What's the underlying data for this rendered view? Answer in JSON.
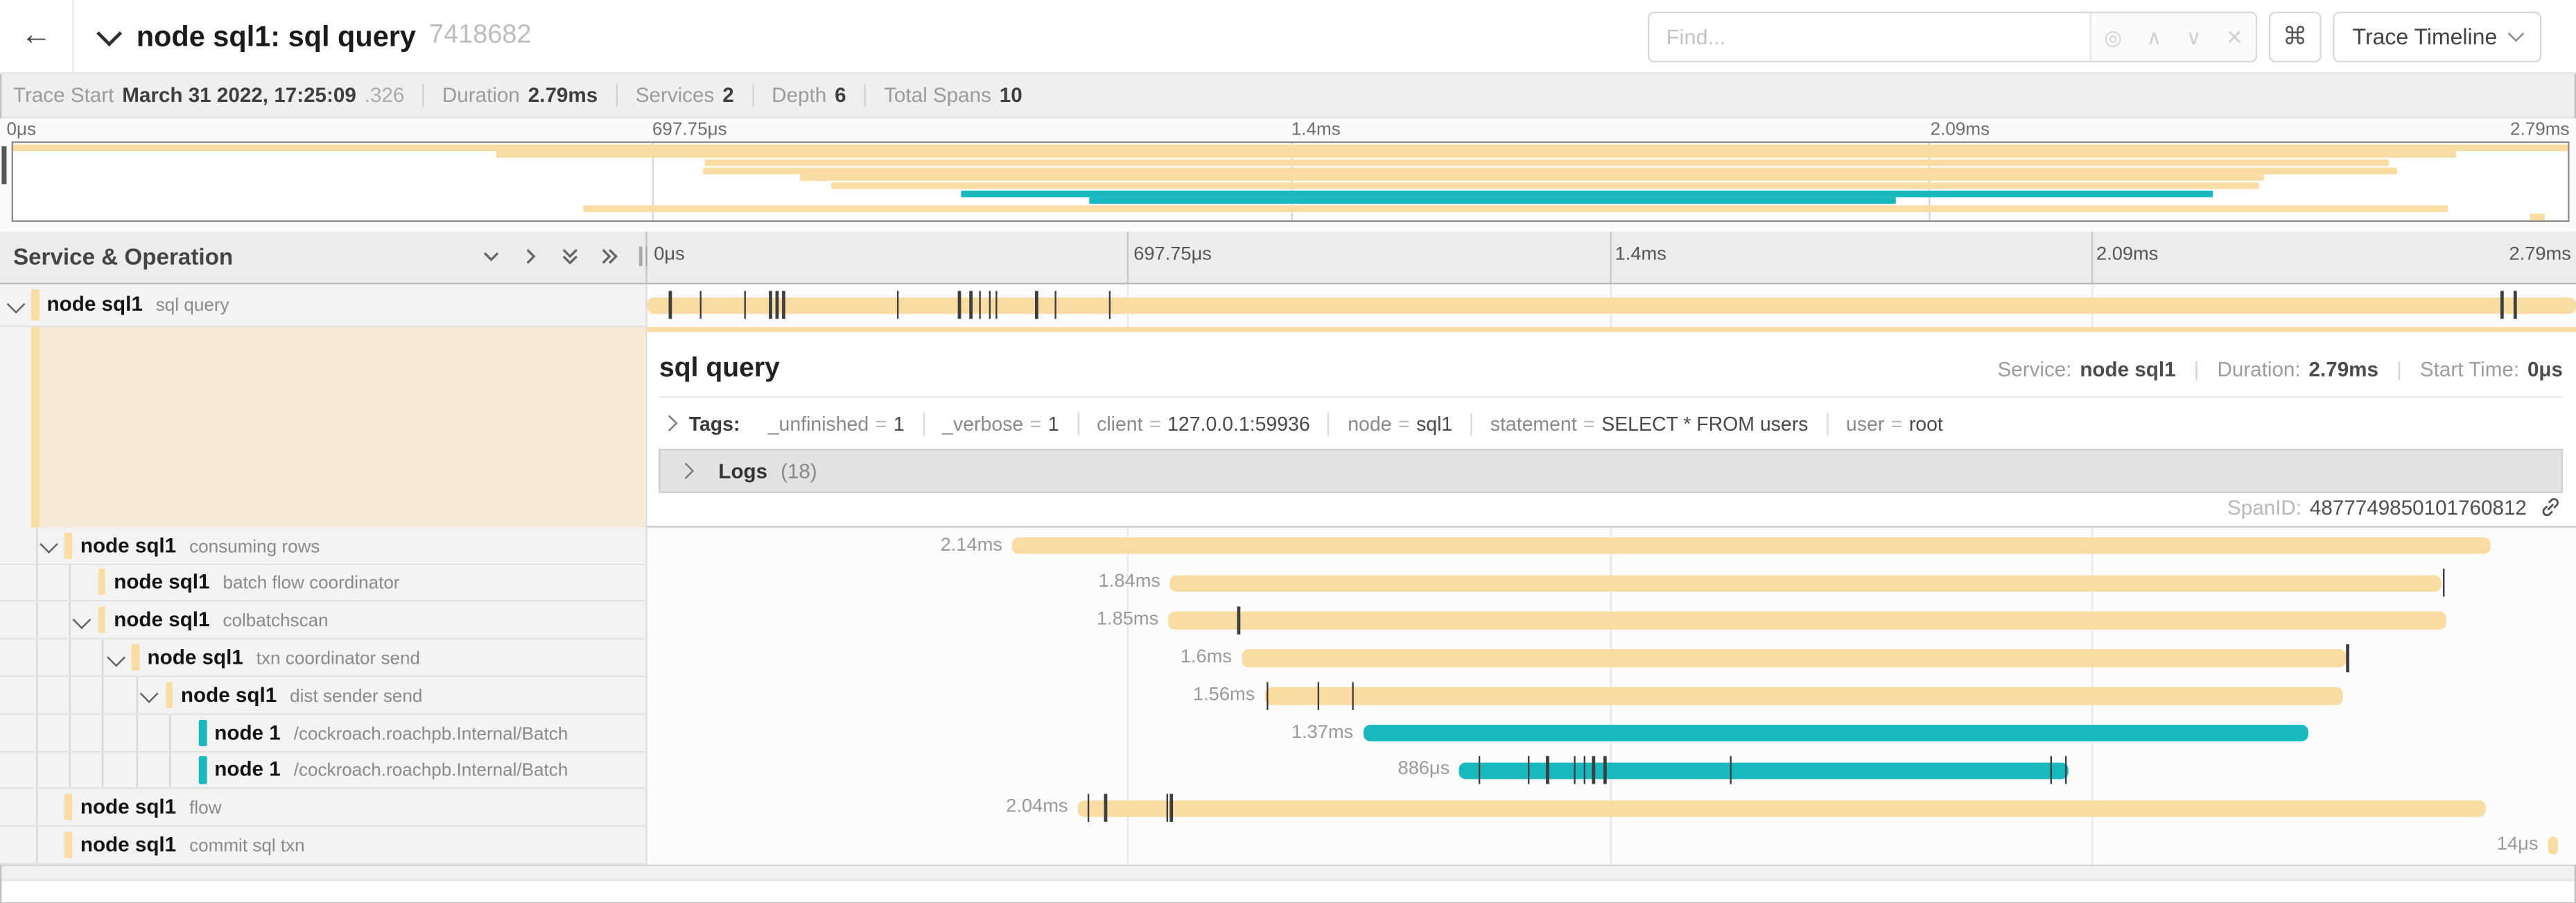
{
  "header": {
    "back_icon": "←",
    "title": "node sql1: sql query",
    "trace_id": "7418682",
    "find_placeholder": "Find...",
    "locate_icon": "◎",
    "prev_icon": "∧",
    "next_icon": "∨",
    "clear_icon": "✕",
    "command_icon": "⌘",
    "trace_timeline_label": "Trace Timeline"
  },
  "summary": {
    "items": [
      {
        "label": "Trace Start",
        "value": "March 31 2022, 17:25:09",
        "suffix": ".326"
      },
      {
        "label": "Duration",
        "value": "2.79ms"
      },
      {
        "label": "Services",
        "value": "2"
      },
      {
        "label": "Depth",
        "value": "6"
      },
      {
        "label": "Total Spans",
        "value": "10"
      }
    ]
  },
  "timeline": {
    "left_header": "Service & Operation",
    "ticks": [
      "0μs",
      "697.75μs",
      "1.4ms",
      "2.09ms",
      "2.79ms"
    ]
  },
  "detail": {
    "title": "sql query",
    "service_label": "Service:",
    "service": "node sql1",
    "duration_label": "Duration:",
    "duration": "2.79ms",
    "start_time_label": "Start Time:",
    "start_time": "0μs",
    "tags_label": "Tags:",
    "eq": "=",
    "tags": [
      {
        "key": "_unfinished",
        "value": "1"
      },
      {
        "key": "_verbose",
        "value": "1"
      },
      {
        "key": "client",
        "value": "127.0.0.1:59936"
      },
      {
        "key": "node",
        "value": "sql1"
      },
      {
        "key": "statement",
        "value": "SELECT * FROM users"
      },
      {
        "key": "user",
        "value": "root"
      }
    ],
    "logs_label": "Logs",
    "logs_count": "(18)",
    "span_id_label": "SpanID:",
    "span_id": "4877749850101760812"
  },
  "colors": {
    "tan": "#F8DCA1",
    "teal": "#17B8BE"
  },
  "spans": [
    {
      "service": "node sql1",
      "operation": "sql query",
      "color": "#F8DCA1",
      "depth": 0,
      "expander": true,
      "start": 0,
      "width": 100,
      "duration_label": "",
      "ticks": [
        1.1,
        2.7,
        5.0,
        6.3,
        6.65,
        7.0,
        12.9,
        16.1,
        16.7,
        17.2,
        17.7,
        18.0,
        20.1,
        21.1,
        23.9,
        96.1,
        96.8
      ]
    },
    {
      "service": "node sql1",
      "operation": "consuming rows",
      "color": "#F8DCA1",
      "depth": 1,
      "expander": true,
      "start": 18.9,
      "width": 76.7,
      "duration_label": "2.14ms",
      "ticks": []
    },
    {
      "service": "node sql1",
      "operation": "batch flow coordinator",
      "color": "#F8DCA1",
      "depth": 2,
      "expander": false,
      "start": 27.1,
      "width": 65.9,
      "duration_label": "1.84ms",
      "ticks": [
        93.1
      ]
    },
    {
      "service": "node sql1",
      "operation": "colbatchscan",
      "color": "#F8DCA1",
      "depth": 2,
      "expander": true,
      "start": 27.0,
      "width": 66.3,
      "duration_label": "1.85ms",
      "ticks": [
        30.6
      ]
    },
    {
      "service": "node sql1",
      "operation": "txn coordinator send",
      "color": "#F8DCA1",
      "depth": 3,
      "expander": true,
      "start": 30.8,
      "width": 57.3,
      "duration_label": "1.6ms",
      "ticks": [
        88.1
      ]
    },
    {
      "service": "node sql1",
      "operation": "dist sender send",
      "color": "#F8DCA1",
      "depth": 4,
      "expander": true,
      "start": 32.0,
      "width": 55.9,
      "duration_label": "1.56ms",
      "ticks": [
        32.1,
        34.7,
        36.5
      ]
    },
    {
      "service": "node 1",
      "operation": "/cockroach.roachpb.Internal/Batch",
      "color": "#17B8BE",
      "depth": 5,
      "expander": false,
      "start": 37.1,
      "width": 49.0,
      "duration_label": "1.37ms",
      "ticks": []
    },
    {
      "service": "node 1",
      "operation": "/cockroach.roachpb.Internal/Batch",
      "color": "#17B8BE",
      "depth": 5,
      "expander": false,
      "start": 42.1,
      "width": 31.6,
      "duration_label": "886μs",
      "ticks": [
        43.1,
        45.6,
        46.6,
        48.0,
        48.5,
        49.0,
        49.6,
        56.1,
        72.7,
        73.5
      ]
    },
    {
      "service": "node sql1",
      "operation": "flow",
      "color": "#F8DCA1",
      "depth": 1,
      "expander": false,
      "start": 22.3,
      "width": 73.0,
      "duration_label": "2.04ms",
      "ticks": [
        22.8,
        23.7,
        26.9,
        27.1
      ]
    },
    {
      "service": "node sql1",
      "operation": "commit sql txn",
      "color": "#F8DCA1",
      "depth": 1,
      "expander": false,
      "start": 98.55,
      "width": 0.55,
      "duration_label": "14μs",
      "ticks": []
    }
  ]
}
